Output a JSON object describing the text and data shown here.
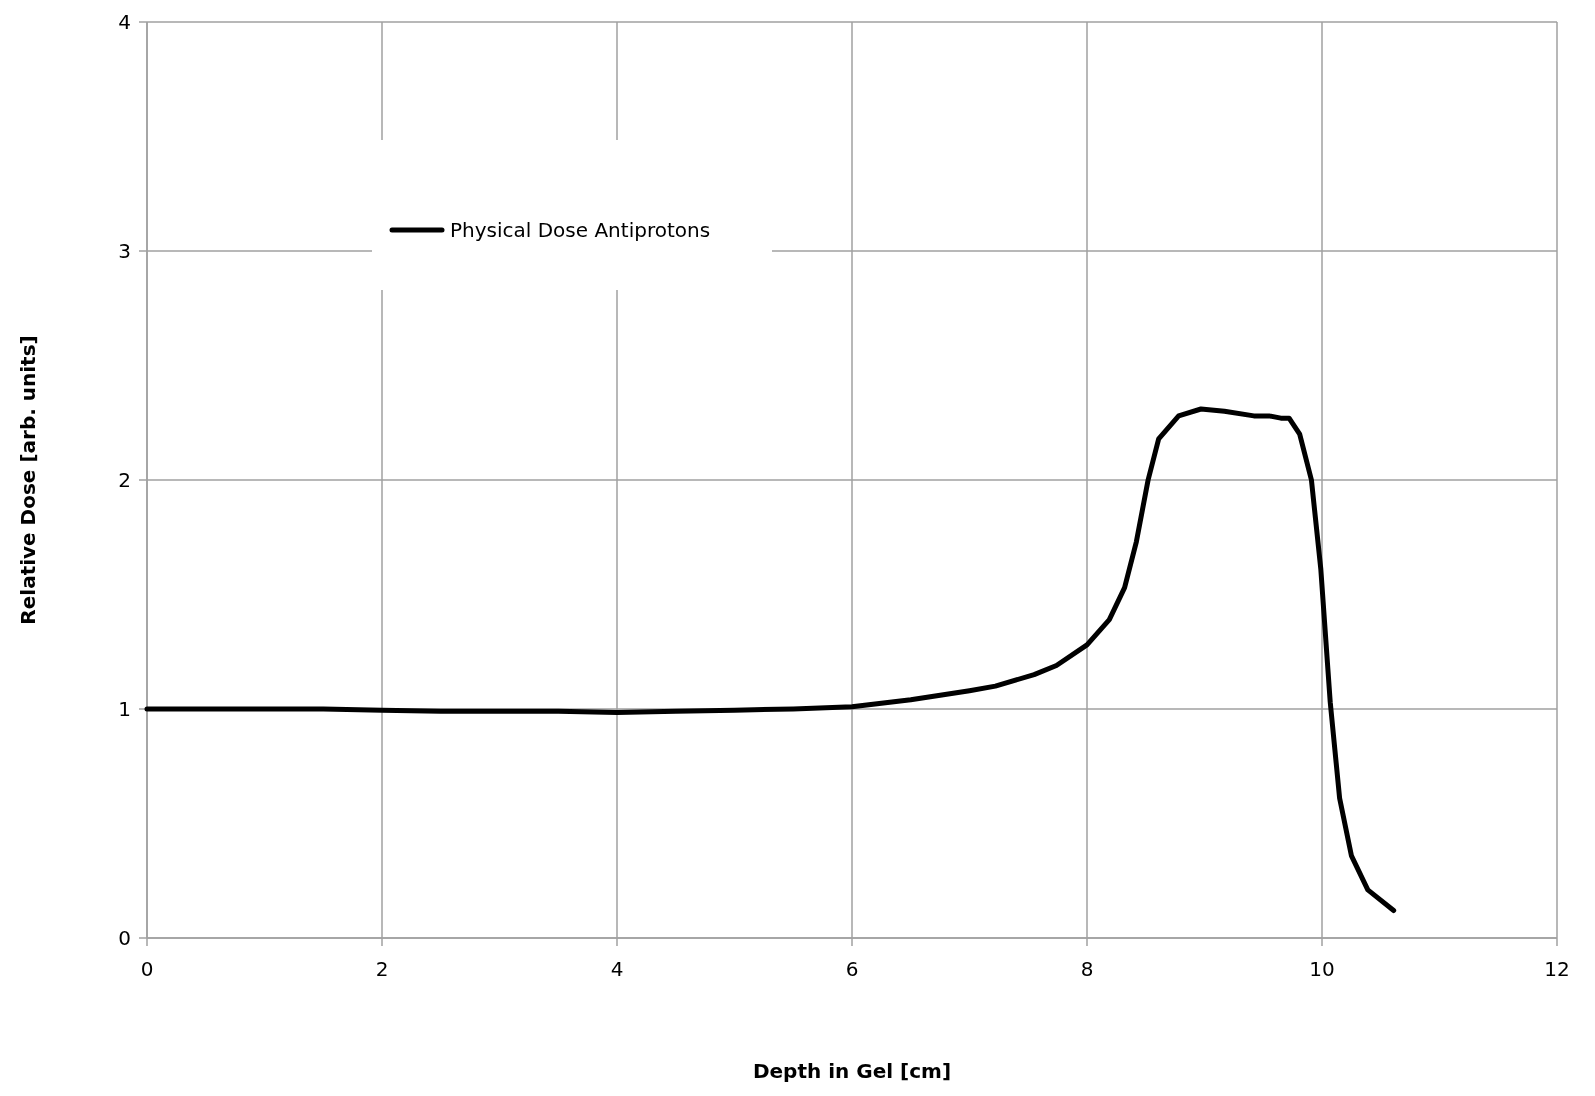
{
  "chart_data": {
    "type": "line",
    "xlabel": "Depth in Gel [cm]",
    "ylabel": "Relative Dose [arb. units]",
    "xlim": [
      0,
      12
    ],
    "xticks": [
      0,
      2,
      4,
      6,
      8,
      10,
      12
    ],
    "ylim": [
      0,
      4
    ],
    "yticks": [
      0,
      1,
      2,
      3,
      4
    ],
    "grid": true,
    "legend": "top left",
    "line_style": "solid",
    "marker": "none",
    "series": [
      {
        "name": "Physical Dose Antiprotons",
        "color": "#000000",
        "x": [
          0,
          0.5,
          1,
          1.5,
          2,
          2.5,
          3,
          3.5,
          4,
          4.5,
          5,
          5.5,
          6,
          6.5,
          7,
          7.22,
          7.55,
          7.74,
          8.0,
          8.19,
          8.32,
          8.42,
          8.52,
          8.61,
          8.78,
          8.97,
          9.17,
          9.42,
          9.55,
          9.65,
          9.72,
          9.81,
          9.91,
          9.99,
          10.07,
          10.15,
          10.25,
          10.39,
          10.61
        ],
        "values": [
          1.0,
          1.0,
          1.0,
          1.0,
          0.995,
          0.99,
          0.99,
          0.99,
          0.985,
          0.99,
          0.995,
          1.0,
          1.01,
          1.04,
          1.08,
          1.1,
          1.15,
          1.19,
          1.28,
          1.39,
          1.53,
          1.73,
          2.0,
          2.18,
          2.28,
          2.31,
          2.3,
          2.28,
          2.28,
          2.27,
          2.27,
          2.2,
          2.0,
          1.61,
          1.03,
          0.61,
          0.36,
          0.21,
          0.12
        ]
      }
    ]
  }
}
